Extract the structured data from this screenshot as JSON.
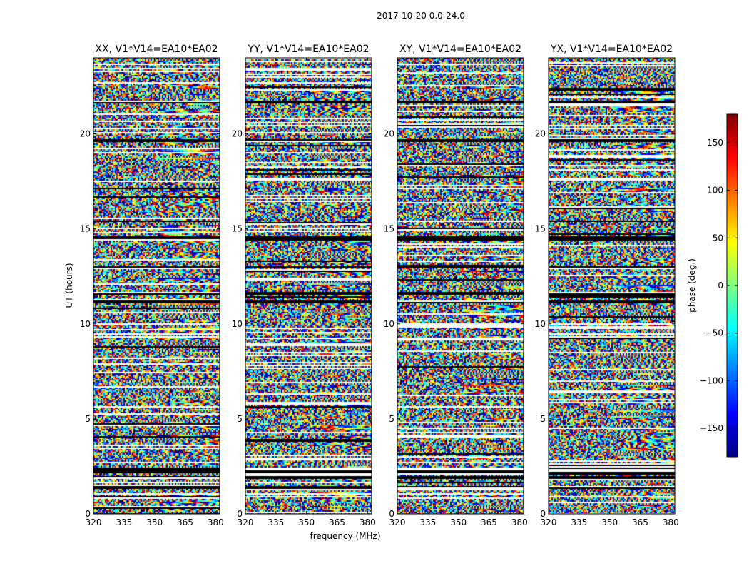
{
  "figure": {
    "suptitle": "2017-10-20 0.0-24.0",
    "colorbar_label": "phase (deg.)"
  },
  "chart_data": {
    "type": "heatmap",
    "xlabel": "frequency (MHz)",
    "ylabel": "UT (hours)",
    "xlim": [
      320,
      382
    ],
    "ylim": [
      0,
      24
    ],
    "xticks": [
      320,
      335,
      350,
      365,
      380
    ],
    "yticks": [
      0,
      5,
      10,
      15,
      20
    ],
    "color_scale": {
      "label": "phase (deg.)",
      "min": -180,
      "max": 180,
      "ticks": [
        -150,
        -100,
        -50,
        0,
        50,
        100,
        150
      ],
      "tick_labels": [
        "−150",
        "−100",
        "−50",
        "0",
        "50",
        "100",
        "150"
      ],
      "colormap": "jet",
      "colors": [
        "#00007f",
        "#0000ff",
        "#007fff",
        "#00ffff",
        "#7fff7f",
        "#ffff00",
        "#ff7f00",
        "#ff0000",
        "#7f0000"
      ]
    },
    "panels": [
      {
        "title": "XX, V1*V14=EA10*EA02",
        "pol": "XX"
      },
      {
        "title": "YY, V1*V14=EA10*EA02",
        "pol": "YY"
      },
      {
        "title": "XY, V1*V14=EA10*EA02",
        "pol": "XY"
      },
      {
        "title": "YX, V1*V14=EA10*EA02",
        "pol": "YX"
      }
    ],
    "flagged_ut_ranges": [
      [
        1.35,
        1.5
      ],
      [
        1.9,
        2.0
      ],
      [
        2.15,
        2.45
      ],
      [
        11.1,
        11.25
      ],
      [
        11.6,
        11.75
      ],
      [
        13.0,
        13.1
      ],
      [
        14.4,
        14.65
      ],
      [
        19.6,
        19.75
      ],
      [
        21.6,
        21.75
      ]
    ]
  }
}
